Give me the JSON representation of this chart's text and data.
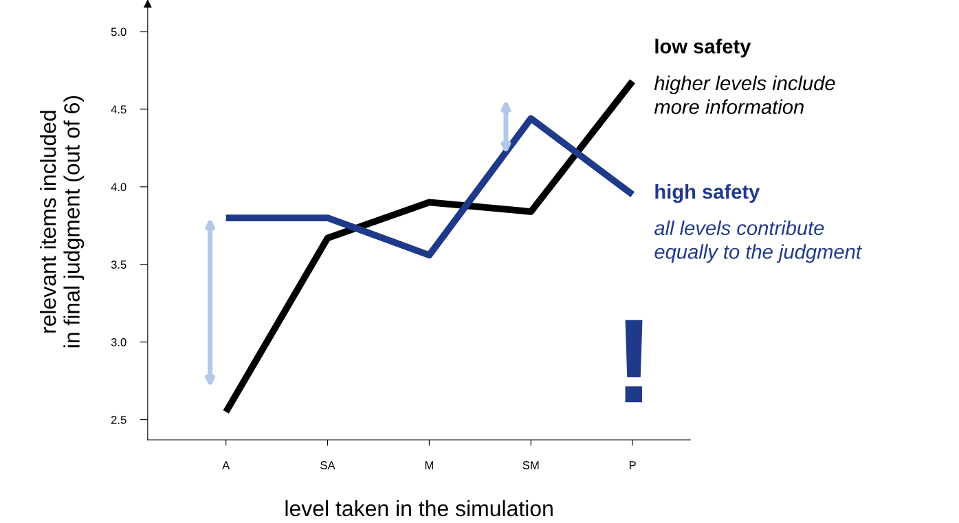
{
  "chart_data": {
    "type": "line",
    "xlabel": "level taken in the simulation",
    "ylabel": "relevant items included\nin final judgment (out of 6)",
    "categories": [
      "A",
      "SA",
      "M",
      "SM",
      "P"
    ],
    "series": [
      {
        "name": "low safety",
        "color": "#000000",
        "values": [
          2.55,
          3.67,
          3.9,
          3.84,
          4.68
        ]
      },
      {
        "name": "high safety",
        "color": "#1f3a8a",
        "values": [
          3.8,
          3.8,
          3.56,
          4.44,
          3.95
        ]
      }
    ],
    "ylim": [
      2.37,
      5.18
    ],
    "yticks": [
      {
        "value": 2.5,
        "label": "2.5"
      },
      {
        "value": 3,
        "label": "3.0"
      },
      {
        "value": 3.5,
        "label": "3.5"
      },
      {
        "value": 4,
        "label": "4.0"
      },
      {
        "value": 4.5,
        "label": "4.5"
      },
      {
        "value": 5,
        "label": "5.0"
      }
    ],
    "annotations": [
      "higher levels include\nmore information",
      "all levels contribute\nequally to the judgment",
      "!"
    ],
    "grid": false,
    "legend": false,
    "marker": "none",
    "line_style": "solid"
  }
}
